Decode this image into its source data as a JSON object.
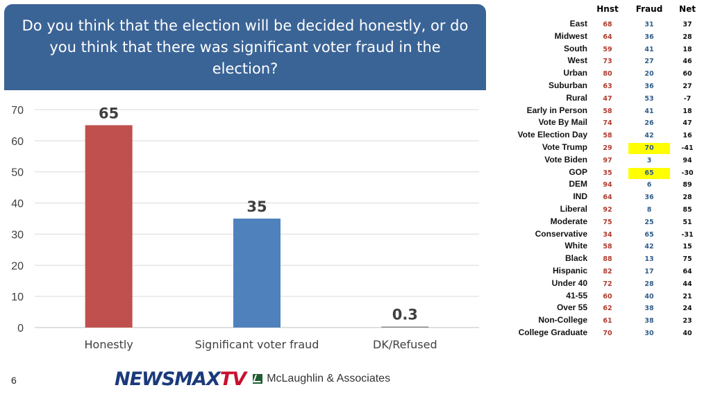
{
  "question": "Do you think that the election will be decided honestly, or do you think that there was significant voter fraud in the election?",
  "colors": {
    "header_bg": "#3b6496",
    "honestly_bar": "#c0504d",
    "fraud_bar": "#4f81bd",
    "dk_bar": "#7f7f7f",
    "hnst_text": "#b03a2e",
    "fraud_text": "#2e5c8a",
    "net_text": "#111111",
    "highlight": "#ffff00"
  },
  "chart_data": {
    "type": "bar",
    "categories": [
      "Honestly",
      "Significant voter fraud",
      "DK/Refused"
    ],
    "values": [
      65,
      35,
      0.3
    ],
    "value_labels": [
      "65",
      "35",
      "0.3"
    ],
    "ylim": [
      0,
      70
    ],
    "yticks": [
      0,
      10,
      20,
      30,
      40,
      50,
      60,
      70
    ],
    "grid": true
  },
  "table": {
    "headers": {
      "hnst": "Hnst",
      "fraud": "Fraud",
      "net": "Net"
    },
    "rows": [
      {
        "segment": "East",
        "hnst": "68",
        "fraud": "31",
        "net": "37",
        "highlight": false
      },
      {
        "segment": "Midwest",
        "hnst": "64",
        "fraud": "36",
        "net": "28",
        "highlight": false
      },
      {
        "segment": "South",
        "hnst": "59",
        "fraud": "41",
        "net": "18",
        "highlight": false
      },
      {
        "segment": "West",
        "hnst": "73",
        "fraud": "27",
        "net": "46",
        "highlight": false
      },
      {
        "segment": "Urban",
        "hnst": "80",
        "fraud": "20",
        "net": "60",
        "highlight": false
      },
      {
        "segment": "Suburban",
        "hnst": "63",
        "fraud": "36",
        "net": "27",
        "highlight": false
      },
      {
        "segment": "Rural",
        "hnst": "47",
        "fraud": "53",
        "net": "-7",
        "highlight": false
      },
      {
        "segment": "Early in Person",
        "hnst": "58",
        "fraud": "41",
        "net": "18",
        "highlight": false
      },
      {
        "segment": "Vote By Mail",
        "hnst": "74",
        "fraud": "26",
        "net": "47",
        "highlight": false
      },
      {
        "segment": "Vote Election Day",
        "hnst": "58",
        "fraud": "42",
        "net": "16",
        "highlight": false
      },
      {
        "segment": "Vote Trump",
        "hnst": "29",
        "fraud": "70",
        "net": "-41",
        "highlight": true
      },
      {
        "segment": "Vote Biden",
        "hnst": "97",
        "fraud": "3",
        "net": "94",
        "highlight": false
      },
      {
        "segment": "GOP",
        "hnst": "35",
        "fraud": "65",
        "net": "-30",
        "highlight": true
      },
      {
        "segment": "DEM",
        "hnst": "94",
        "fraud": "6",
        "net": "89",
        "highlight": false
      },
      {
        "segment": "IND",
        "hnst": "64",
        "fraud": "36",
        "net": "28",
        "highlight": false
      },
      {
        "segment": "Liberal",
        "hnst": "92",
        "fraud": "8",
        "net": "85",
        "highlight": false
      },
      {
        "segment": "Moderate",
        "hnst": "75",
        "fraud": "25",
        "net": "51",
        "highlight": false
      },
      {
        "segment": "Conservative",
        "hnst": "34",
        "fraud": "65",
        "net": "-31",
        "highlight": false
      },
      {
        "segment": "White",
        "hnst": "58",
        "fraud": "42",
        "net": "15",
        "highlight": false
      },
      {
        "segment": "Black",
        "hnst": "88",
        "fraud": "13",
        "net": "75",
        "highlight": false
      },
      {
        "segment": "Hispanic",
        "hnst": "82",
        "fraud": "17",
        "net": "64",
        "highlight": false
      },
      {
        "segment": "Under 40",
        "hnst": "72",
        "fraud": "28",
        "net": "44",
        "highlight": false
      },
      {
        "segment": "41-55",
        "hnst": "60",
        "fraud": "40",
        "net": "21",
        "highlight": false
      },
      {
        "segment": "Over 55",
        "hnst": "62",
        "fraud": "38",
        "net": "24",
        "highlight": false
      },
      {
        "segment": "Non-College",
        "hnst": "61",
        "fraud": "38",
        "net": "23",
        "highlight": false
      },
      {
        "segment": "College Graduate",
        "hnst": "70",
        "fraud": "30",
        "net": "40",
        "highlight": false
      }
    ]
  },
  "footer": {
    "page_number": "6",
    "logo_news": "NEWSMAX",
    "logo_tv": "TV",
    "logo_news_color": "#1a3a7a",
    "logo_tv_color": "#c8102e",
    "partner": "McLaughlin & Associates"
  }
}
